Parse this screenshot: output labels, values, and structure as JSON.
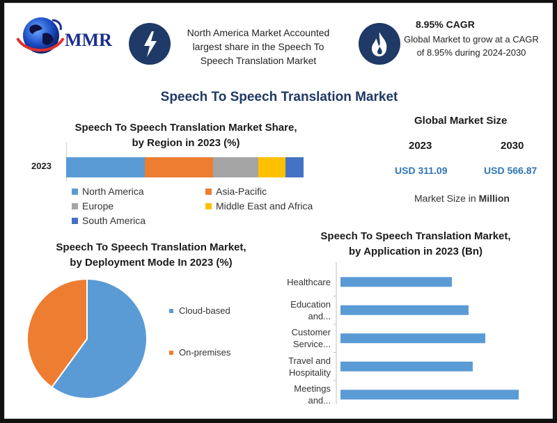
{
  "header": {
    "logo_text": "MMR",
    "stat1": {
      "icon": "lightning-icon",
      "text": "North America Market Accounted largest share in the Speech To Speech Translation Market"
    },
    "stat2": {
      "icon": "flame-icon",
      "title": "8.95% CAGR",
      "text": "Global Market to grow at a CAGR of 8.95% during 2024-2030"
    }
  },
  "main_title": "Speech To Speech Translation Market",
  "market_size": {
    "title": "Global Market Size",
    "years": [
      "2023",
      "2030"
    ],
    "values": [
      "USD 311.09",
      "USD 566.87"
    ],
    "note_prefix": "Market Size in ",
    "note_unit": "Million"
  },
  "colors": {
    "north_america": "#5b9bd5",
    "asia_pacific": "#ed7d31",
    "europe": "#a5a5a5",
    "mea": "#ffc000",
    "south_america": "#4472c4",
    "navy": "#1f3864",
    "value_blue": "#2e75b6"
  },
  "chart_data": [
    {
      "type": "bar",
      "orientation": "horizontal-stacked",
      "title_line1": "Speech To Speech Translation Market Share,",
      "title_line2": "by Region in 2023 (%)",
      "categories": [
        "2023"
      ],
      "series": [
        {
          "name": "North America",
          "values": [
            33
          ],
          "color": "#5b9bd5"
        },
        {
          "name": "Asia-Pacific",
          "values": [
            29
          ],
          "color": "#ed7d31"
        },
        {
          "name": "Europe",
          "values": [
            19
          ],
          "color": "#a5a5a5"
        },
        {
          "name": "Middle East and Africa",
          "values": [
            11.5
          ],
          "color": "#ffc000"
        },
        {
          "name": "South America",
          "values": [
            7.5
          ],
          "color": "#4472c4"
        }
      ],
      "legend": "bottom"
    },
    {
      "type": "pie",
      "title_line1": "Speech To Speech Translation Market,",
      "title_line2": "by Deployment Mode In 2023 (%)",
      "labels": [
        "Cloud-based",
        "On-premises"
      ],
      "values": [
        60,
        40
      ],
      "colors": [
        "#5b9bd5",
        "#ed7d31"
      ],
      "legend": "right"
    },
    {
      "type": "bar",
      "orientation": "horizontal",
      "title_line1": "Speech To Speech Translation Market,",
      "title_line2": "by Application in 2023 (Bn)",
      "categories": [
        [
          "Healthcare"
        ],
        [
          "Education",
          "and..."
        ],
        [
          "Customer",
          "Service..."
        ],
        [
          "Travel and",
          "Hospitality"
        ],
        [
          "Meetings",
          "and..."
        ]
      ],
      "values": [
        160,
        184,
        208,
        190,
        256
      ],
      "xlim": [
        0,
        300
      ],
      "color": "#5b9bd5"
    }
  ]
}
